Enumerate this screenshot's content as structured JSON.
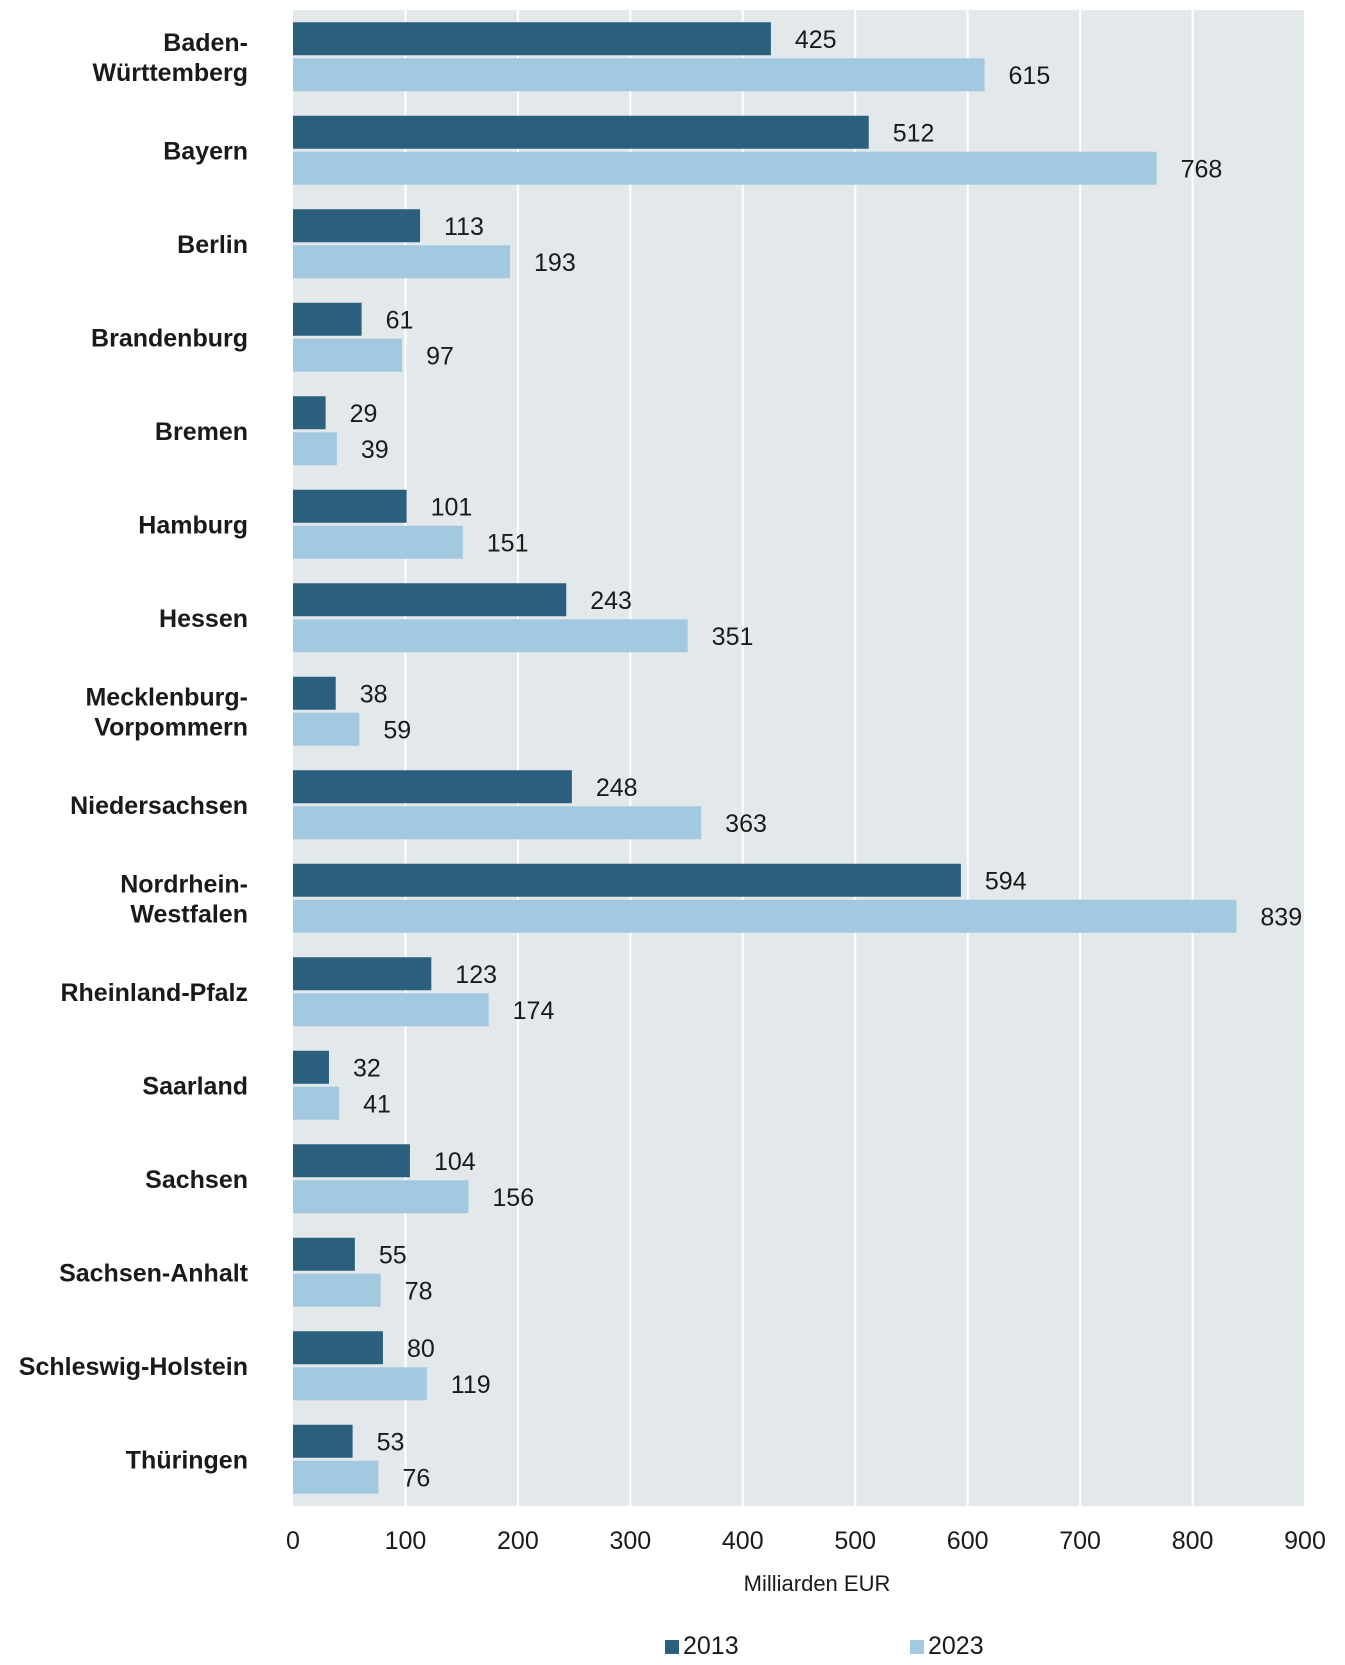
{
  "chart_data": {
    "type": "bar",
    "orientation": "horizontal",
    "categories": [
      [
        "Baden-",
        "Württemberg"
      ],
      [
        "Bayern"
      ],
      [
        "Berlin"
      ],
      [
        "Brandenburg"
      ],
      [
        "Bremen"
      ],
      [
        "Hamburg"
      ],
      [
        "Hessen"
      ],
      [
        "Mecklenburg-",
        "Vorpommern"
      ],
      [
        "Niedersachsen"
      ],
      [
        "Nordrhein-",
        "Westfalen"
      ],
      [
        "Rheinland-Pfalz"
      ],
      [
        "Saarland"
      ],
      [
        "Sachsen"
      ],
      [
        "Sachsen-Anhalt"
      ],
      [
        "Schleswig-Holstein"
      ],
      [
        "Thüringen"
      ]
    ],
    "series": [
      {
        "name": "2013",
        "color": "#2b5f7e",
        "values": [
          425,
          512,
          113,
          61,
          29,
          101,
          243,
          38,
          248,
          594,
          123,
          32,
          104,
          55,
          80,
          53
        ]
      },
      {
        "name": "2023",
        "color": "#a3c9e0",
        "values": [
          615,
          768,
          193,
          97,
          39,
          151,
          351,
          59,
          363,
          839,
          174,
          41,
          156,
          78,
          119,
          76
        ]
      }
    ],
    "title": "",
    "xlabel": "Milliarden EUR",
    "ylabel": "",
    "xlim": [
      0,
      900
    ],
    "xticks": [
      0,
      100,
      200,
      300,
      400,
      500,
      600,
      700,
      800,
      900
    ],
    "grid": "vertical",
    "plot_background": "#e3e8eb",
    "legend": "bottom"
  }
}
